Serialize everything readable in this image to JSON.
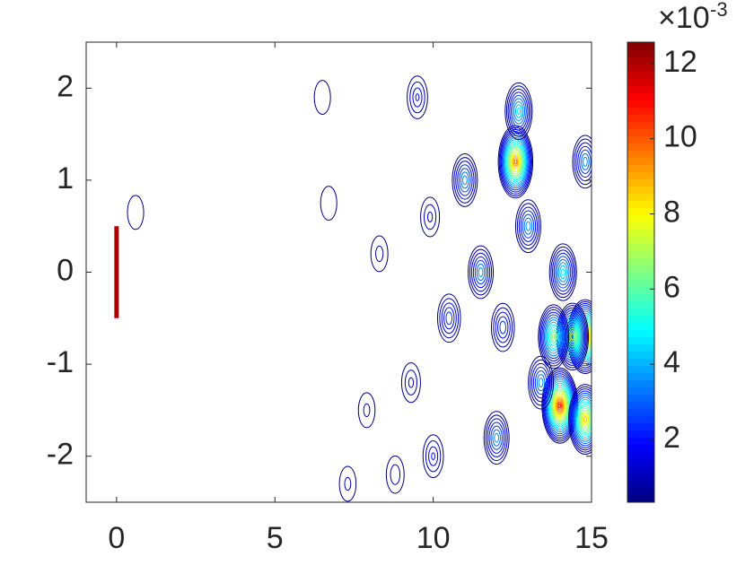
{
  "chart_data": {
    "type": "contour",
    "xlim": [
      -0.96,
      15
    ],
    "ylim": [
      -2.5,
      2.5
    ],
    "xticks": [
      0,
      5,
      10,
      15
    ],
    "yticks": [
      -2,
      -1,
      0,
      1,
      2
    ],
    "colormap": "jet",
    "colorbar": {
      "clim": [
        0.33,
        12.57
      ],
      "ticks": [
        2,
        4,
        6,
        8,
        10,
        12
      ],
      "multiplier": "×10",
      "exponent": "-3"
    },
    "source": {
      "x": 0,
      "y": [
        -0.5,
        0.5
      ],
      "value": 12
    },
    "peaks": [
      {
        "x": 12.6,
        "y": 1.2,
        "value": 10
      },
      {
        "x": 14.0,
        "y": -1.45,
        "value": 11
      },
      {
        "x": 14.8,
        "y": -0.7,
        "value": 10.5
      },
      {
        "x": 14.4,
        "y": -0.7,
        "value": 8
      },
      {
        "x": 13.8,
        "y": -0.7,
        "value": 7
      },
      {
        "x": 14.8,
        "y": -1.6,
        "value": 9
      },
      {
        "x": 14.1,
        "y": 0.0,
        "value": 5
      },
      {
        "x": 12.7,
        "y": 1.75,
        "value": 5
      },
      {
        "x": 11.5,
        "y": 0.0,
        "value": 4
      },
      {
        "x": 11.0,
        "y": 1.0,
        "value": 4
      },
      {
        "x": 12.0,
        "y": -1.8,
        "value": 4
      },
      {
        "x": 13.0,
        "y": 0.5,
        "value": 4
      },
      {
        "x": 14.8,
        "y": 1.2,
        "value": 4
      },
      {
        "x": 12.2,
        "y": -0.6,
        "value": 3
      },
      {
        "x": 13.4,
        "y": -1.2,
        "value": 4
      },
      {
        "x": 10.5,
        "y": -0.5,
        "value": 3
      },
      {
        "x": 10.0,
        "y": -2.0,
        "value": 2
      },
      {
        "x": 9.5,
        "y": 1.9,
        "value": 2
      },
      {
        "x": 9.9,
        "y": 0.6,
        "value": 1.5
      },
      {
        "x": 9.3,
        "y": -1.2,
        "value": 1.5
      },
      {
        "x": 8.8,
        "y": -2.2,
        "value": 1.2
      },
      {
        "x": 8.3,
        "y": 0.2,
        "value": 1
      },
      {
        "x": 7.9,
        "y": -1.5,
        "value": 0.9
      },
      {
        "x": 7.3,
        "y": -2.3,
        "value": 0.9
      },
      {
        "x": 6.5,
        "y": 1.9,
        "value": 0.8
      },
      {
        "x": 6.7,
        "y": 0.75,
        "value": 0.8
      },
      {
        "x": 0.6,
        "y": 0.65,
        "value": 0.8
      }
    ]
  }
}
